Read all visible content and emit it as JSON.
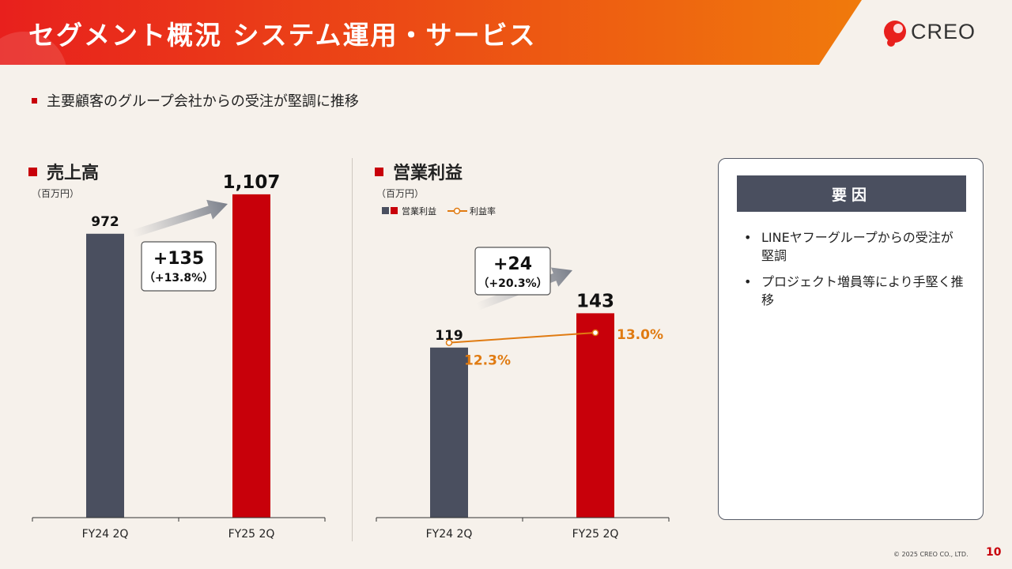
{
  "header": {
    "title": "セグメント概況 システム運用・サービス",
    "logo_text": "CREO"
  },
  "summary": "主要顧客のグループ会社からの受注が堅調に推移",
  "colors": {
    "prev": "#4a4f5f",
    "curr": "#c8000a",
    "rate": "#e07b12"
  },
  "chart_data": [
    {
      "type": "bar",
      "title": "売上高",
      "unit_label": "（百万円）",
      "categories": [
        "FY24 2Q",
        "FY25 2Q"
      ],
      "values": [
        972,
        1107
      ],
      "value_labels": [
        "972",
        "1,107"
      ],
      "ylim": [
        0,
        1150
      ],
      "change": {
        "amount": "+135",
        "pct": "（+13.8%）"
      }
    },
    {
      "type": "bar",
      "title": "営業利益",
      "unit_label": "（百万円）",
      "categories": [
        "FY24 2Q",
        "FY25 2Q"
      ],
      "values": [
        119,
        143
      ],
      "value_labels": [
        "119",
        "143"
      ],
      "ylim": [
        0,
        235
      ],
      "legend": {
        "bar": "営業利益",
        "line": "利益率"
      },
      "change": {
        "amount": "+24",
        "pct": "（+20.3%）"
      },
      "rate_series": {
        "name": "利益率",
        "values": [
          12.3,
          13.0
        ],
        "labels": [
          "12.3%",
          "13.0%"
        ]
      }
    }
  ],
  "panel": {
    "heading": "要因",
    "bullet": "•",
    "items": [
      "LINEヤフーグループからの受注が堅調",
      "プロジェクト増員等により手堅く推移"
    ]
  },
  "footer": {
    "copyright": "© 2025 CREO CO., LTD.",
    "page_number": "10"
  }
}
